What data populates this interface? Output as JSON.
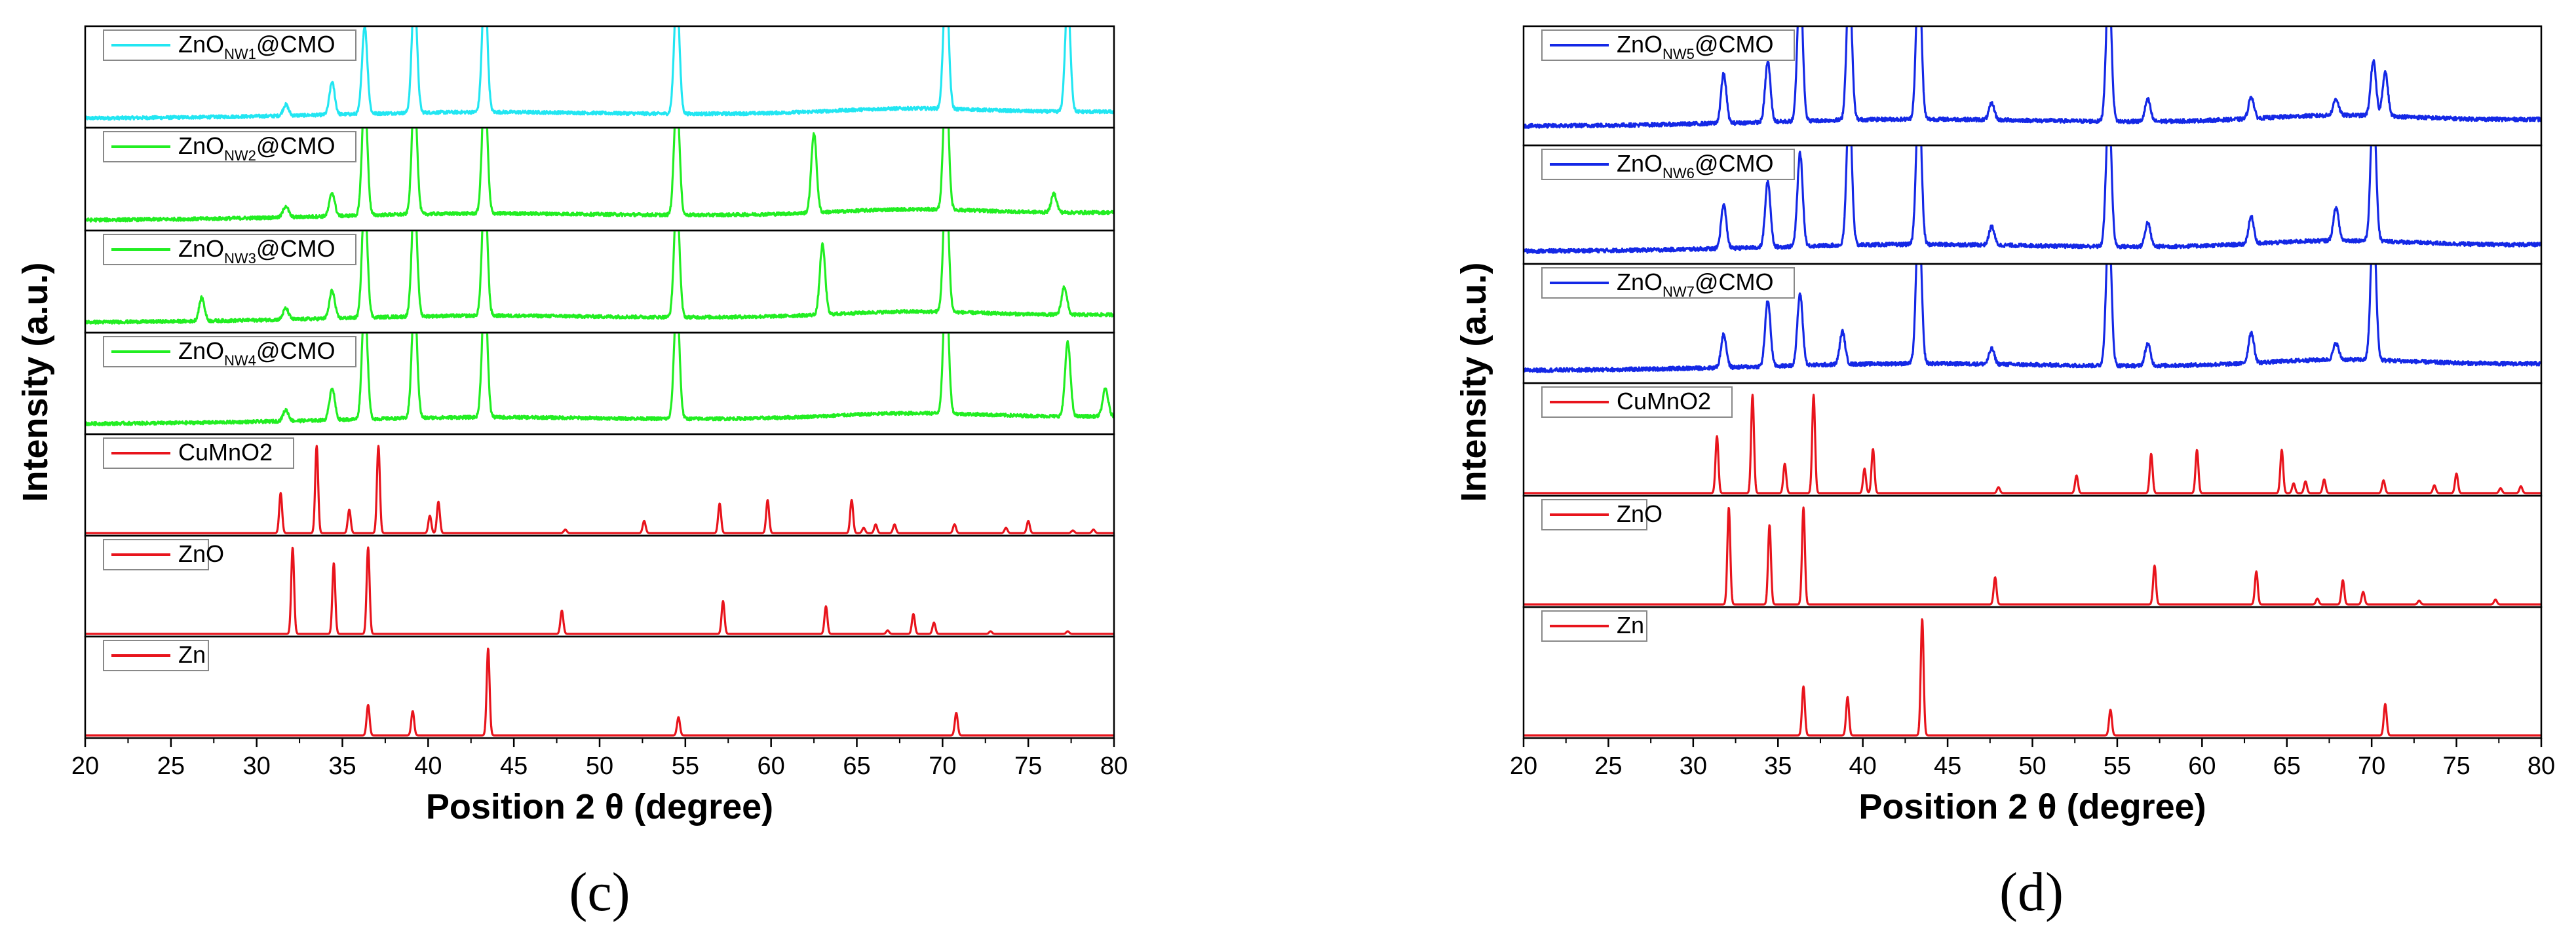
{
  "chart_data": [
    {
      "id": "c",
      "type": "line",
      "panel_label": "(c)",
      "xlabel": "Position 2 θ (degree)",
      "ylabel": "Intensity (a.u.)",
      "xlim": [
        20,
        80
      ],
      "xticks": [
        20,
        25,
        30,
        35,
        40,
        45,
        50,
        55,
        60,
        65,
        70,
        75,
        80
      ],
      "grid": false,
      "series": [
        {
          "name": "ZnO_NW1@CMO",
          "label_main": "ZnO",
          "label_sub": "NW1",
          "label_tail": "@CMO",
          "color": "#22e6f2",
          "kind": "noisy",
          "baseline": 0.06,
          "slope": 0.07,
          "noise": 0.035,
          "peaks": [
            [
              31.7,
              0.12
            ],
            [
              34.4,
              0.35
            ],
            [
              36.3,
              0.95
            ],
            [
              39.2,
              1.3
            ],
            [
              43.3,
              1.4
            ],
            [
              54.5,
              1.3
            ],
            [
              70.2,
              1.4
            ],
            [
              77.3,
              1.2
            ]
          ]
        },
        {
          "name": "ZnO_NW2@CMO",
          "label_main": "ZnO",
          "label_sub": "NW2",
          "label_tail": "@CMO",
          "color": "#22ee22",
          "kind": "noisy",
          "baseline": 0.07,
          "slope": 0.08,
          "noise": 0.035,
          "peaks": [
            [
              31.7,
              0.12
            ],
            [
              34.4,
              0.25
            ],
            [
              36.3,
              1.3
            ],
            [
              39.2,
              1.3
            ],
            [
              43.3,
              1.4
            ],
            [
              54.5,
              1.3
            ],
            [
              62.5,
              0.85
            ],
            [
              70.2,
              1.4
            ],
            [
              76.5,
              0.2
            ]
          ]
        },
        {
          "name": "ZnO_NW3@CMO",
          "label_main": "ZnO",
          "label_sub": "NW3",
          "label_tail": "@CMO",
          "color": "#22ee22",
          "kind": "noisy",
          "baseline": 0.07,
          "slope": 0.08,
          "noise": 0.035,
          "peaks": [
            [
              26.8,
              0.25
            ],
            [
              31.7,
              0.12
            ],
            [
              34.4,
              0.3
            ],
            [
              36.3,
              1.3
            ],
            [
              39.2,
              1.3
            ],
            [
              43.3,
              1.4
            ],
            [
              54.5,
              1.3
            ],
            [
              63.0,
              0.75
            ],
            [
              70.2,
              1.4
            ],
            [
              77.1,
              0.3
            ]
          ]
        },
        {
          "name": "ZnO_NW4@CMO",
          "label_main": "ZnO",
          "label_sub": "NW4",
          "label_tail": "@CMO",
          "color": "#22ee22",
          "kind": "noisy",
          "baseline": 0.07,
          "slope": 0.08,
          "noise": 0.035,
          "peaks": [
            [
              31.7,
              0.12
            ],
            [
              34.4,
              0.35
            ],
            [
              36.3,
              1.3
            ],
            [
              39.2,
              1.3
            ],
            [
              43.3,
              1.4
            ],
            [
              54.5,
              1.3
            ],
            [
              70.2,
              1.4
            ],
            [
              77.3,
              0.8
            ],
            [
              79.5,
              0.3
            ]
          ]
        },
        {
          "name": "CuMnO2",
          "label_main": "CuMnO2",
          "color": "#e8141c",
          "kind": "stick",
          "peaks": [
            [
              31.4,
              0.46
            ],
            [
              33.5,
              1.0
            ],
            [
              35.4,
              0.27
            ],
            [
              37.1,
              1.0
            ],
            [
              40.1,
              0.2
            ],
            [
              40.6,
              0.36
            ],
            [
              48.0,
              0.04
            ],
            [
              52.6,
              0.14
            ],
            [
              57.0,
              0.34
            ],
            [
              59.8,
              0.38
            ],
            [
              64.7,
              0.38
            ],
            [
              65.4,
              0.06
            ],
            [
              66.1,
              0.1
            ],
            [
              67.2,
              0.1
            ],
            [
              70.7,
              0.1
            ],
            [
              73.7,
              0.06
            ],
            [
              75.0,
              0.14
            ],
            [
              77.6,
              0.03
            ],
            [
              78.8,
              0.04
            ]
          ]
        },
        {
          "name": "ZnO",
          "label_main": "ZnO",
          "color": "#e8141c",
          "kind": "stick",
          "peaks": [
            [
              32.1,
              1.0
            ],
            [
              34.5,
              0.82
            ],
            [
              36.5,
              1.0
            ],
            [
              47.8,
              0.27
            ],
            [
              57.2,
              0.38
            ],
            [
              63.2,
              0.32
            ],
            [
              66.8,
              0.04
            ],
            [
              68.3,
              0.23
            ],
            [
              69.5,
              0.13
            ],
            [
              72.8,
              0.03
            ],
            [
              77.3,
              0.03
            ]
          ]
        },
        {
          "name": "Zn",
          "label_main": "Zn",
          "color": "#e8141c",
          "kind": "stick",
          "peaks": [
            [
              36.5,
              0.35
            ],
            [
              39.1,
              0.28
            ],
            [
              43.5,
              1.0
            ],
            [
              54.6,
              0.21
            ],
            [
              70.8,
              0.26
            ]
          ]
        }
      ]
    },
    {
      "id": "d",
      "type": "line",
      "panel_label": "(d)",
      "xlabel": "Position 2 θ (degree)",
      "ylabel": "Intensity (a.u.)",
      "xlim": [
        20,
        80
      ],
      "xticks": [
        20,
        25,
        30,
        35,
        40,
        45,
        50,
        55,
        60,
        65,
        70,
        75,
        80
      ],
      "grid": false,
      "series": [
        {
          "name": "ZnO_NW5@CMO",
          "label_main": "ZnO",
          "label_sub": "NW5",
          "label_tail": "@CMO",
          "color": "#1428e6",
          "kind": "noisy",
          "baseline": 0.14,
          "slope": 0.06,
          "noise": 0.035,
          "peaks": [
            [
              31.8,
              0.45
            ],
            [
              34.4,
              0.55
            ],
            [
              36.3,
              1.3
            ],
            [
              39.2,
              1.3
            ],
            [
              43.3,
              1.4
            ],
            [
              47.6,
              0.15
            ],
            [
              54.5,
              1.3
            ],
            [
              56.8,
              0.2
            ],
            [
              62.9,
              0.2
            ],
            [
              67.9,
              0.15
            ],
            [
              70.1,
              0.5
            ],
            [
              70.8,
              0.4
            ]
          ]
        },
        {
          "name": "ZnO_NW6@CMO",
          "label_main": "ZnO",
          "label_sub": "NW6",
          "label_tail": "@CMO",
          "color": "#1428e6",
          "kind": "noisy",
          "baseline": 0.08,
          "slope": 0.06,
          "noise": 0.035,
          "peaks": [
            [
              31.8,
              0.4
            ],
            [
              34.4,
              0.6
            ],
            [
              36.3,
              0.85
            ],
            [
              39.2,
              1.3
            ],
            [
              43.3,
              1.4
            ],
            [
              47.6,
              0.17
            ],
            [
              54.5,
              1.3
            ],
            [
              56.8,
              0.22
            ],
            [
              62.9,
              0.25
            ],
            [
              67.9,
              0.3
            ],
            [
              70.1,
              1.3
            ]
          ]
        },
        {
          "name": "ZnO_NW7@CMO",
          "label_main": "ZnO",
          "label_sub": "NW7",
          "label_tail": "@CMO",
          "color": "#1428e6",
          "kind": "noisy",
          "baseline": 0.08,
          "slope": 0.06,
          "noise": 0.035,
          "peaks": [
            [
              31.8,
              0.3
            ],
            [
              34.4,
              0.6
            ],
            [
              36.3,
              0.65
            ],
            [
              38.8,
              0.3
            ],
            [
              43.3,
              1.4
            ],
            [
              47.6,
              0.14
            ],
            [
              54.5,
              1.3
            ],
            [
              56.8,
              0.2
            ],
            [
              62.9,
              0.28
            ],
            [
              67.9,
              0.15
            ],
            [
              70.1,
              1.3
            ]
          ]
        },
        {
          "name": "CuMnO2",
          "label_main": "CuMnO2",
          "color": "#e8141c",
          "kind": "stick",
          "peaks": [
            [
              31.4,
              0.58
            ],
            [
              33.5,
              1.0
            ],
            [
              35.4,
              0.3
            ],
            [
              37.1,
              1.0
            ],
            [
              40.1,
              0.25
            ],
            [
              40.6,
              0.45
            ],
            [
              48.0,
              0.06
            ],
            [
              52.6,
              0.18
            ],
            [
              57.0,
              0.4
            ],
            [
              59.7,
              0.44
            ],
            [
              64.7,
              0.44
            ],
            [
              65.4,
              0.1
            ],
            [
              66.1,
              0.12
            ],
            [
              67.2,
              0.14
            ],
            [
              70.7,
              0.13
            ],
            [
              73.7,
              0.08
            ],
            [
              75.0,
              0.2
            ],
            [
              77.6,
              0.05
            ],
            [
              78.8,
              0.07
            ]
          ]
        },
        {
          "name": "ZnO",
          "label_main": "ZnO",
          "color": "#e8141c",
          "kind": "stick",
          "peaks": [
            [
              32.1,
              1.0
            ],
            [
              34.5,
              0.82
            ],
            [
              36.5,
              1.0
            ],
            [
              47.8,
              0.28
            ],
            [
              57.2,
              0.4
            ],
            [
              63.2,
              0.34
            ],
            [
              66.8,
              0.06
            ],
            [
              68.3,
              0.25
            ],
            [
              69.5,
              0.13
            ],
            [
              72.8,
              0.04
            ],
            [
              77.3,
              0.05
            ]
          ]
        },
        {
          "name": "Zn",
          "label_main": "Zn",
          "color": "#e8141c",
          "kind": "stick",
          "peaks": [
            [
              36.5,
              0.42
            ],
            [
              39.1,
              0.33
            ],
            [
              43.5,
              1.0
            ],
            [
              54.6,
              0.22
            ],
            [
              70.8,
              0.27
            ]
          ]
        }
      ]
    }
  ]
}
